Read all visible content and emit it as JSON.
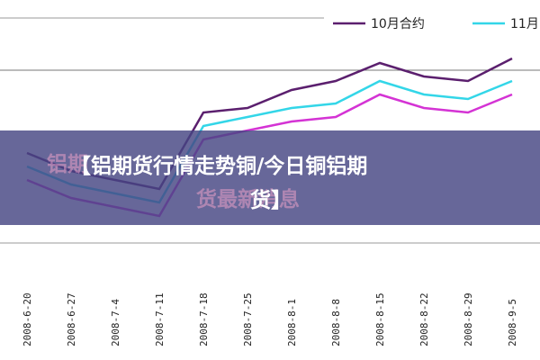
{
  "chart_data": {
    "type": "line",
    "categories": [
      "2008-6-20",
      "2008-6-27",
      "2008-7-4",
      "2008-7-11",
      "2008-7-18",
      "2008-7-25",
      "2008-8-1",
      "2008-8-8",
      "2008-8-15",
      "2008-8-22",
      "2008-8-29",
      "2008-9-5"
    ],
    "series": [
      {
        "name": "10月合约",
        "color": "#5b1f6e",
        "values": [
          40,
          32,
          28,
          24,
          58,
          60,
          68,
          72,
          80,
          74,
          72,
          82
        ]
      },
      {
        "name": "11月",
        "color": "#33d6e8",
        "values": [
          34,
          26,
          22,
          18,
          52,
          56,
          60,
          62,
          72,
          66,
          64,
          72
        ]
      },
      {
        "color": "#d433d4",
        "values": [
          28,
          20,
          16,
          12,
          46,
          50,
          54,
          56,
          66,
          60,
          58,
          66
        ]
      }
    ],
    "ylim": [
      0,
      100
    ]
  },
  "banner": {
    "lines": [
      "【铝期货行情走势铜/今日铜铝期",
      "货】"
    ],
    "watermark": [
      "铝期",
      "货最新消息"
    ]
  }
}
